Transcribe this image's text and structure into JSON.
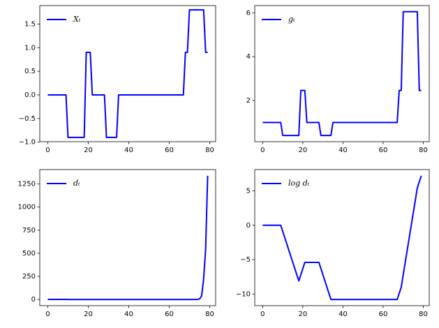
{
  "chart_data": [
    {
      "type": "line",
      "x": [
        0,
        1,
        2,
        3,
        4,
        5,
        6,
        7,
        8,
        9,
        10,
        11,
        12,
        13,
        14,
        15,
        16,
        17,
        18,
        19,
        20,
        21,
        22,
        23,
        24,
        25,
        26,
        27,
        28,
        29,
        30,
        31,
        32,
        33,
        34,
        35,
        36,
        37,
        38,
        39,
        40,
        41,
        42,
        43,
        44,
        45,
        46,
        47,
        48,
        49,
        50,
        51,
        52,
        53,
        54,
        55,
        56,
        57,
        58,
        59,
        60,
        61,
        62,
        63,
        64,
        65,
        66,
        67,
        68,
        69,
        70,
        71,
        72,
        73,
        74,
        75,
        76,
        77,
        78,
        79
      ],
      "series": [
        {
          "name": "Xₜ",
          "color": "#0000ff",
          "values": [
            0,
            0,
            0,
            0,
            0,
            0,
            0,
            0,
            0,
            0,
            -0.9,
            -0.9,
            -0.9,
            -0.9,
            -0.9,
            -0.9,
            -0.9,
            -0.9,
            -0.9,
            0.9,
            0.9,
            0.9,
            0,
            0,
            0,
            0,
            0,
            0,
            0,
            -0.9,
            -0.9,
            -0.9,
            -0.9,
            -0.9,
            -0.9,
            0,
            0,
            0,
            0,
            0,
            0,
            0,
            0,
            0,
            0,
            0,
            0,
            0,
            0,
            0,
            0,
            0,
            0,
            0,
            0,
            0,
            0,
            0,
            0,
            0,
            0,
            0,
            0,
            0,
            0,
            0,
            0,
            0,
            0.9,
            0.9,
            1.8,
            1.8,
            1.8,
            1.8,
            1.8,
            1.8,
            1.8,
            1.8,
            0.9,
            0.9
          ]
        }
      ],
      "xlim": [
        -3.95,
        82.95
      ],
      "xticks": [
        0,
        20,
        40,
        60,
        80
      ],
      "ylim": [
        -0.99,
        1.89
      ],
      "yticks": [
        {
          "value": -1,
          "label": "−1.0"
        },
        {
          "value": -0.5,
          "label": "−0.5"
        },
        {
          "value": 0,
          "label": "0.0"
        },
        {
          "value": 0.5,
          "label": "0.5"
        },
        {
          "value": 1,
          "label": "1.0"
        },
        {
          "value": 1.5,
          "label": "1.5"
        }
      ],
      "legend": "upper left"
    },
    {
      "type": "line",
      "x": [
        0,
        1,
        2,
        3,
        4,
        5,
        6,
        7,
        8,
        9,
        10,
        11,
        12,
        13,
        14,
        15,
        16,
        17,
        18,
        19,
        20,
        21,
        22,
        23,
        24,
        25,
        26,
        27,
        28,
        29,
        30,
        31,
        32,
        33,
        34,
        35,
        36,
        37,
        38,
        39,
        40,
        41,
        42,
        43,
        44,
        45,
        46,
        47,
        48,
        49,
        50,
        51,
        52,
        53,
        54,
        55,
        56,
        57,
        58,
        59,
        60,
        61,
        62,
        63,
        64,
        65,
        66,
        67,
        68,
        69,
        70,
        71,
        72,
        73,
        74,
        75,
        76,
        77,
        78,
        79
      ],
      "series": [
        {
          "name": "gₜ",
          "color": "#0000ff",
          "values": [
            1,
            1,
            1,
            1,
            1,
            1,
            1,
            1,
            1,
            1,
            0.407,
            0.407,
            0.407,
            0.407,
            0.407,
            0.407,
            0.407,
            0.407,
            0.407,
            2.46,
            2.46,
            2.46,
            1,
            1,
            1,
            1,
            1,
            1,
            1,
            0.407,
            0.407,
            0.407,
            0.407,
            0.407,
            0.407,
            1,
            1,
            1,
            1,
            1,
            1,
            1,
            1,
            1,
            1,
            1,
            1,
            1,
            1,
            1,
            1,
            1,
            1,
            1,
            1,
            1,
            1,
            1,
            1,
            1,
            1,
            1,
            1,
            1,
            1,
            1,
            1,
            1,
            2.46,
            2.46,
            6.05,
            6.05,
            6.05,
            6.05,
            6.05,
            6.05,
            6.05,
            6.05,
            2.46,
            2.46
          ]
        }
      ],
      "xlim": [
        -3.95,
        82.95
      ],
      "xticks": [
        0,
        20,
        40,
        60,
        80
      ],
      "ylim": [
        0.125,
        6.33
      ],
      "yticks": [
        2,
        4,
        6
      ],
      "legend": "upper left"
    },
    {
      "type": "line",
      "x": [
        0,
        1,
        2,
        3,
        4,
        5,
        6,
        7,
        8,
        9,
        10,
        11,
        12,
        13,
        14,
        15,
        16,
        17,
        18,
        19,
        20,
        21,
        22,
        23,
        24,
        25,
        26,
        27,
        28,
        29,
        30,
        31,
        32,
        33,
        34,
        35,
        36,
        37,
        38,
        39,
        40,
        41,
        42,
        43,
        44,
        45,
        46,
        47,
        48,
        49,
        50,
        51,
        52,
        53,
        54,
        55,
        56,
        57,
        58,
        59,
        60,
        61,
        62,
        63,
        64,
        65,
        66,
        67,
        68,
        69,
        70,
        71,
        72,
        73,
        74,
        75,
        76,
        77,
        78,
        79
      ],
      "series": [
        {
          "name": "dₜ",
          "color": "#0000ff",
          "values": [
            1,
            1,
            1,
            1,
            1,
            1,
            1,
            1,
            1,
            1,
            0.407,
            0.165,
            0.067,
            0.027,
            0.011,
            0.0045,
            0.0018,
            0.00075,
            0.0003,
            0.00075,
            0.0018,
            0.0045,
            0.0045,
            0.0045,
            0.0045,
            0.0045,
            0.0045,
            0.0045,
            0.0045,
            0.0018,
            0.00075,
            0.0003,
            0.00012,
            5e-05,
            2e-05,
            2e-05,
            2e-05,
            2e-05,
            2e-05,
            2e-05,
            2e-05,
            2e-05,
            2e-05,
            2e-05,
            2e-05,
            2e-05,
            2e-05,
            2e-05,
            2e-05,
            2e-05,
            2e-05,
            2e-05,
            2e-05,
            2e-05,
            2e-05,
            2e-05,
            2e-05,
            2e-05,
            2e-05,
            2e-05,
            2e-05,
            2e-05,
            2e-05,
            2e-05,
            2e-05,
            2e-05,
            2e-05,
            2e-05,
            5e-05,
            0.00012,
            0.00075,
            0.0045,
            0.027,
            0.165,
            1,
            6.05,
            36.6,
            221.4,
            544.6,
            1339.4
          ]
        }
      ],
      "xlim": [
        -3.95,
        82.95
      ],
      "xticks": [
        0,
        20,
        40,
        60,
        80
      ],
      "ylim": [
        -67,
        1406
      ],
      "yticks": [
        0,
        250,
        500,
        750,
        1000,
        1250
      ],
      "legend": "upper left"
    },
    {
      "type": "line",
      "x": [
        0,
        1,
        2,
        3,
        4,
        5,
        6,
        7,
        8,
        9,
        10,
        11,
        12,
        13,
        14,
        15,
        16,
        17,
        18,
        19,
        20,
        21,
        22,
        23,
        24,
        25,
        26,
        27,
        28,
        29,
        30,
        31,
        32,
        33,
        34,
        35,
        36,
        37,
        38,
        39,
        40,
        41,
        42,
        43,
        44,
        45,
        46,
        47,
        48,
        49,
        50,
        51,
        52,
        53,
        54,
        55,
        56,
        57,
        58,
        59,
        60,
        61,
        62,
        63,
        64,
        65,
        66,
        67,
        68,
        69,
        70,
        71,
        72,
        73,
        74,
        75,
        76,
        77,
        78,
        79
      ],
      "series": [
        {
          "name": "log dₜ",
          "color": "#0000ff",
          "values": [
            0,
            0,
            0,
            0,
            0,
            0,
            0,
            0,
            0,
            0,
            -0.9,
            -1.8,
            -2.7,
            -3.6,
            -4.5,
            -5.4,
            -6.3,
            -7.2,
            -8.1,
            -7.2,
            -6.3,
            -5.4,
            -5.4,
            -5.4,
            -5.4,
            -5.4,
            -5.4,
            -5.4,
            -5.4,
            -6.3,
            -7.2,
            -8.1,
            -9,
            -9.9,
            -10.8,
            -10.8,
            -10.8,
            -10.8,
            -10.8,
            -10.8,
            -10.8,
            -10.8,
            -10.8,
            -10.8,
            -10.8,
            -10.8,
            -10.8,
            -10.8,
            -10.8,
            -10.8,
            -10.8,
            -10.8,
            -10.8,
            -10.8,
            -10.8,
            -10.8,
            -10.8,
            -10.8,
            -10.8,
            -10.8,
            -10.8,
            -10.8,
            -10.8,
            -10.8,
            -10.8,
            -10.8,
            -10.8,
            -10.8,
            -9.9,
            -9,
            -7.2,
            -5.4,
            -3.6,
            -1.8,
            0,
            1.8,
            3.6,
            5.4,
            6.3,
            7.2
          ]
        }
      ],
      "xlim": [
        -3.95,
        82.95
      ],
      "xticks": [
        0,
        20,
        40,
        60,
        80
      ],
      "ylim": [
        -11.7,
        8.1
      ],
      "yticks": [
        {
          "value": -10,
          "label": "−10"
        },
        {
          "value": -5,
          "label": "−5"
        },
        0,
        5
      ],
      "legend": "upper left"
    }
  ]
}
